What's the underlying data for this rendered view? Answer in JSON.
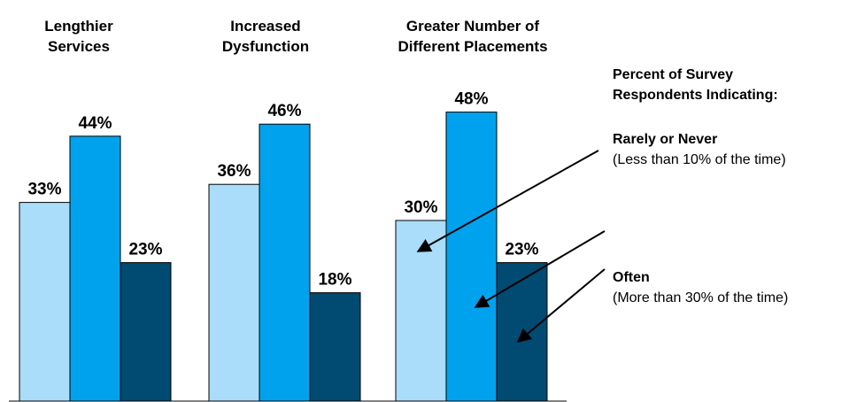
{
  "chart_data": {
    "type": "bar",
    "categories": [
      "Lengthier Services",
      "Increased Dysfunction",
      "Greater Number of Different Placements"
    ],
    "category_title_lines": [
      [
        "Lengthier",
        "Services"
      ],
      [
        "Increased",
        "Dysfunction"
      ],
      [
        "Greater Number of",
        "Different Placements"
      ]
    ],
    "series": [
      {
        "values": [
          33,
          36,
          30
        ],
        "color": "#a9ddfa"
      },
      {
        "values": [
          44,
          46,
          48
        ],
        "color": "#00a2ee"
      },
      {
        "values": [
          23,
          18,
          23
        ],
        "color": "#014a72"
      }
    ],
    "value_labels": [
      [
        "33%",
        "36%",
        "30%"
      ],
      [
        "44%",
        "46%",
        "48%"
      ],
      [
        "23%",
        "18%",
        "23%"
      ]
    ],
    "ylim": [
      0,
      50
    ],
    "grid": false,
    "legend_placement": "right",
    "legend": {
      "title_lines": [
        "Percent of Survey",
        "Respondents Indicating:"
      ],
      "rarely": {
        "label": "Rarely or Never",
        "desc": "(Less than 10% of the time)"
      },
      "often": {
        "label": "Often",
        "desc": "(More than 30% of the time)"
      }
    },
    "colors": {
      "bar_outline": "#000000",
      "arrow": "#000000",
      "axis": "#000000"
    }
  }
}
